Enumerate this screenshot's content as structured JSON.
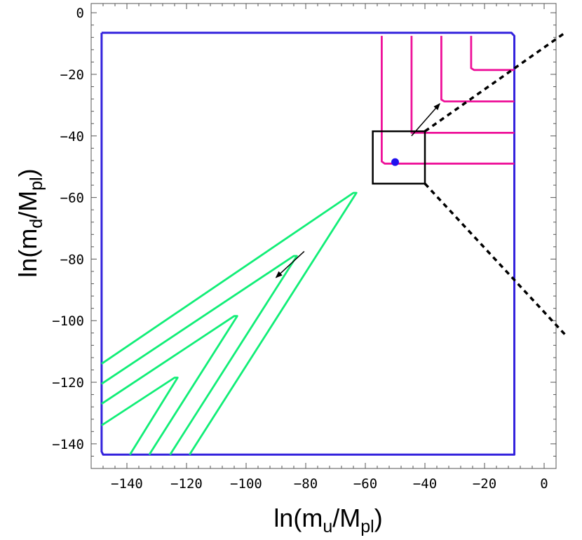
{
  "chart_data": {
    "type": "line",
    "xlabel": {
      "base": "ln(m",
      "sub": "u",
      "mid": "/M",
      "sub2": "pl",
      "end": ")"
    },
    "ylabel": {
      "base": "ln(m",
      "sub": "d",
      "mid": "/M",
      "sub2": "pl",
      "end": ")"
    },
    "xlim": [
      -152,
      4
    ],
    "ylim": [
      -148,
      3
    ],
    "xticks": [
      -140,
      -120,
      -100,
      -80,
      -60,
      -40,
      -20,
      0
    ],
    "yticks": [
      0,
      -20,
      -40,
      -60,
      -80,
      -100,
      -120,
      -140
    ],
    "xtick_labels": [
      "−140",
      "−120",
      "−100",
      "−80",
      "−60",
      "−40",
      "−20",
      "0"
    ],
    "ytick_labels": [
      "0",
      "−20",
      "−40",
      "−60",
      "−80",
      "−100",
      "−120",
      "−140"
    ],
    "colors": {
      "boundary": "#3322dd",
      "magenta": "#ee1199",
      "green": "#11ee77",
      "box": "#000000",
      "dashed": "#000000",
      "point": "#2211ee"
    },
    "boundary": [
      [
        -148.5,
        -6.5
      ],
      [
        -11,
        -6.5
      ],
      [
        -10,
        -7.5
      ],
      [
        -10,
        -143.5
      ],
      [
        -148,
        -143.5
      ],
      [
        -148.5,
        -142.5
      ],
      [
        -148.5,
        -6.5
      ]
    ],
    "magenta_contours": [
      [
        [
          -54.5,
          -7.5
        ],
        [
          -54.5,
          -48.3
        ],
        [
          -53.5,
          -49
        ],
        [
          -10,
          -49
        ]
      ],
      [
        [
          -44.5,
          -7.5
        ],
        [
          -44.5,
          -39
        ],
        [
          -10,
          -39
        ]
      ],
      [
        [
          -34.5,
          -7.5
        ],
        [
          -34.5,
          -28.2
        ],
        [
          -33.5,
          -28.8
        ],
        [
          -10,
          -28.8
        ]
      ],
      [
        [
          -24.5,
          -7.5
        ],
        [
          -24.5,
          -18
        ],
        [
          -23.5,
          -18.6
        ],
        [
          -10,
          -18.6
        ]
      ]
    ],
    "green_contours": [
      [
        [
          -148.5,
          -114
        ],
        [
          -64,
          -58.5
        ],
        [
          -63,
          -58.5
        ],
        [
          -119,
          -143.5
        ]
      ],
      [
        [
          -148.5,
          -120.5
        ],
        [
          -84,
          -79
        ],
        [
          -83,
          -79
        ],
        [
          -125.5,
          -143.5
        ]
      ],
      [
        [
          -148.5,
          -127
        ],
        [
          -104,
          -98.5
        ],
        [
          -103,
          -98.5
        ],
        [
          -132.5,
          -143.5
        ]
      ],
      [
        [
          -148.5,
          -134
        ],
        [
          -124,
          -118.5
        ],
        [
          -123,
          -118.5
        ],
        [
          -139,
          -143.5
        ]
      ]
    ],
    "box": {
      "x0": -57.5,
      "x1": -40,
      "y0": -55.5,
      "y1": -38.5
    },
    "point": {
      "x": -50,
      "y": -48.5
    },
    "arrows": [
      {
        "from": [
          -44.5,
          -40
        ],
        "to": [
          -35,
          -29.5
        ]
      },
      {
        "from": [
          -80.5,
          -77.5
        ],
        "to": [
          -90,
          -86
        ]
      }
    ],
    "dashed_lines": [
      [
        [
          -40,
          -38.5
        ],
        [
          7,
          -6.5
        ]
      ],
      [
        [
          -40,
          -55.5
        ],
        [
          7,
          -104.5
        ]
      ]
    ]
  }
}
